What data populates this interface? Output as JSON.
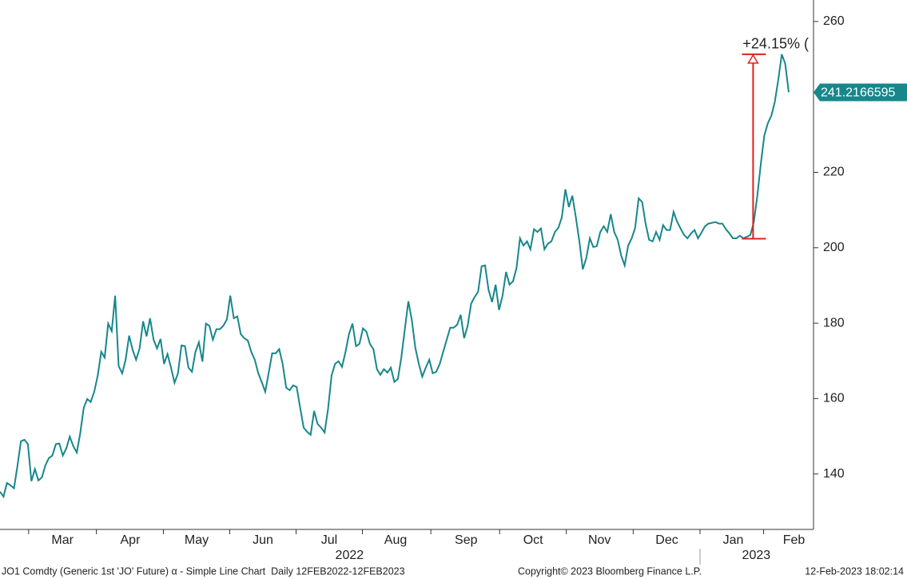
{
  "chart_data": {
    "type": "line",
    "values": [
      135.3,
      134.0,
      137.6,
      137.0,
      136.2,
      142.1,
      148.7,
      149.1,
      147.9,
      138.1,
      141.3,
      138.3,
      139.1,
      142.3,
      144.2,
      144.9,
      147.9,
      148.1,
      144.9,
      146.8,
      149.9,
      147.4,
      145.7,
      150.8,
      157.6,
      159.9,
      159.1,
      161.8,
      166.1,
      172.4,
      170.9,
      179.9,
      177.9,
      187.3,
      168.6,
      166.7,
      170.3,
      176.7,
      172.9,
      170.3,
      173.3,
      180.5,
      176.5,
      181.3,
      175.6,
      173.3,
      175.8,
      169.2,
      171.8,
      168.2,
      164.2,
      166.7,
      174.1,
      173.9,
      168.2,
      167.1,
      172.4,
      174.9,
      169.8,
      179.9,
      179.3,
      175.6,
      178.4,
      178.4,
      179.3,
      181.0,
      187.3,
      181.3,
      181.8,
      177.1,
      176.0,
      175.4,
      172.4,
      170.3,
      166.7,
      164.4,
      161.8,
      166.9,
      172.0,
      172.0,
      173.1,
      169.2,
      162.9,
      162.2,
      163.5,
      163.1,
      157.6,
      152.3,
      151.2,
      150.4,
      156.7,
      153.3,
      152.3,
      151.0,
      157.2,
      166.1,
      169.2,
      169.9,
      168.4,
      172.4,
      177.1,
      179.9,
      173.9,
      174.5,
      178.6,
      177.7,
      174.5,
      173.1,
      167.8,
      166.3,
      167.8,
      166.9,
      168.2,
      164.4,
      165.2,
      170.9,
      178.4,
      185.8,
      180.9,
      173.5,
      169.2,
      165.8,
      168.2,
      170.3,
      166.7,
      167.1,
      169.2,
      172.4,
      175.6,
      178.8,
      178.8,
      179.6,
      182.2,
      176.0,
      179.3,
      185.2,
      186.9,
      188.3,
      195.1,
      195.3,
      188.8,
      185.6,
      190.2,
      183.5,
      187.3,
      193.6,
      190.2,
      191.1,
      194.7,
      202.5,
      200.6,
      201.7,
      199.6,
      204.9,
      204.2,
      205.1,
      199.6,
      201.1,
      201.7,
      204.2,
      205.3,
      208.1,
      215.5,
      210.8,
      213.8,
      208.1,
      201.7,
      194.3,
      197.3,
      202.5,
      200.2,
      200.4,
      204.2,
      205.7,
      204.2,
      208.9,
      204.2,
      202.1,
      197.9,
      195.3,
      200.6,
      202.5,
      205.3,
      213.1,
      212.1,
      206.4,
      202.1,
      201.7,
      204.2,
      202.1,
      206.0,
      204.7,
      204.7,
      209.5,
      207.0,
      205.1,
      203.4,
      202.5,
      203.8,
      204.7,
      202.5,
      204.0,
      205.7,
      206.4,
      206.6,
      206.8,
      206.4,
      206.4,
      204.9,
      203.8,
      202.5,
      202.5,
      203.2,
      202.5,
      202.9,
      203.4,
      206.8,
      213.8,
      222.3,
      229.7,
      233.0,
      235.0,
      238.6,
      244.5,
      251.3,
      248.8,
      241.2166595
    ],
    "color": "#17878b",
    "xlim": [
      0,
      233
    ],
    "xticks": [
      {
        "value": 17.9,
        "label": "Mar"
      },
      {
        "value": 37.3,
        "label": "Apr"
      },
      {
        "value": 56.3,
        "label": "May"
      },
      {
        "value": 75.3,
        "label": "Jun"
      },
      {
        "value": 94.3,
        "label": "Jul"
      },
      {
        "value": 113.3,
        "label": "Aug"
      },
      {
        "value": 133.5,
        "label": "Sep"
      },
      {
        "value": 152.7,
        "label": "Oct"
      },
      {
        "value": 171.7,
        "label": "Nov"
      },
      {
        "value": 191.0,
        "label": "Dec"
      },
      {
        "value": 210.0,
        "label": "Jan"
      },
      {
        "value": 227.4,
        "label": "Feb"
      }
    ],
    "year_labels": [
      {
        "value": 100.1,
        "label": "2022"
      },
      {
        "value": 216.6,
        "label": "2023"
      }
    ],
    "ylim": [
      125.3,
      265.7
    ],
    "yticks": [
      140,
      160,
      180,
      200,
      220,
      260
    ],
    "annotation": {
      "text": "+24.15% (",
      "x": 215.7,
      "from": 202.4,
      "to": 251.3,
      "color": "#e0201c"
    },
    "footer": {
      "left": "JO1 Comdty (Generic 1st 'JO' Future) α - Simple Line Chart  Daily 12FEB2022-12FEB2023",
      "center": "Copyright© 2023 Bloomberg Finance L.P.",
      "right": "12-Feb-2023 18:02:14"
    }
  }
}
